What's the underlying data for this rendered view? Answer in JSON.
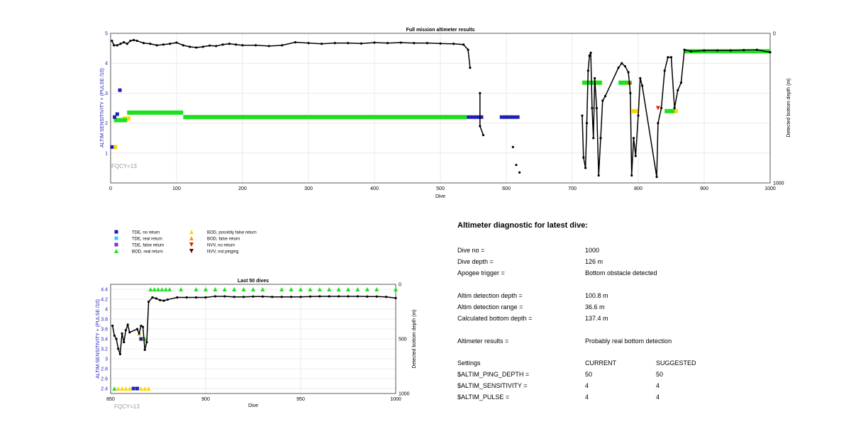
{
  "chart_data": [
    {
      "type": "scatter",
      "title": "Full mission altimeter results",
      "xlabel": "Dive",
      "ylabel": "ALTIM SENSITIVITY + (PULSE /10)",
      "y2label": "Detected bottom depth (m)",
      "xlim": [
        0,
        1000
      ],
      "ylim": [
        0,
        5
      ],
      "y2lim": [
        1000,
        0
      ],
      "xticks": [
        "0",
        "100",
        "200",
        "300",
        "400",
        "500",
        "600",
        "700",
        "800",
        "900",
        "1000"
      ],
      "yticks": [
        "1",
        "2",
        "3",
        "4",
        "5"
      ],
      "y2ticks": [
        "0",
        "1000"
      ],
      "grid": true,
      "annotation": "FQCY=13",
      "bod_real_segments": [
        {
          "x": [
            5,
            25
          ],
          "y": 2.1
        },
        {
          "x": [
            25,
            110
          ],
          "y": 2.35
        },
        {
          "x": [
            110,
            540
          ],
          "y": 2.2
        },
        {
          "x": [
            715,
            745
          ],
          "y": 3.35
        },
        {
          "x": [
            770,
            790
          ],
          "y": 3.35
        },
        {
          "x": [
            840,
            855
          ],
          "y": 2.4
        },
        {
          "x": [
            870,
            1000
          ],
          "y": 4.4
        }
      ],
      "bod_possibly_false_segments": [
        {
          "x": [
            5,
            10
          ],
          "y": 1.2
        },
        {
          "x": [
            18,
            30
          ],
          "y": 2.15
        },
        {
          "x": [
            735,
            745
          ],
          "y": 3.35
        },
        {
          "x": [
            790,
            800
          ],
          "y": 2.4
        },
        {
          "x": [
            845,
            860
          ],
          "y": 2.4
        }
      ],
      "tde_no_return_segments": [
        {
          "x": [
            540,
            565
          ],
          "y": 2.2
        },
        {
          "x": [
            590,
            620
          ],
          "y": 2.2
        }
      ],
      "tde_no_return_points": [
        {
          "x": 2,
          "y": 1.2
        },
        {
          "x": 6,
          "y": 2.2
        },
        {
          "x": 10,
          "y": 2.3
        },
        {
          "x": 14,
          "y": 3.1
        }
      ],
      "nvv_no_return_points": [
        {
          "x": 787,
          "y": 3.3
        },
        {
          "x": 830,
          "y": 2.5
        }
      ],
      "depth_early": [
        {
          "x": 2,
          "y": 50
        },
        {
          "x": 5,
          "y": 80
        },
        {
          "x": 10,
          "y": 80
        },
        {
          "x": 15,
          "y": 70
        },
        {
          "x": 20,
          "y": 60
        },
        {
          "x": 25,
          "y": 70
        },
        {
          "x": 30,
          "y": 50
        },
        {
          "x": 35,
          "y": 45
        },
        {
          "x": 40,
          "y": 50
        },
        {
          "x": 50,
          "y": 65
        },
        {
          "x": 60,
          "y": 70
        },
        {
          "x": 70,
          "y": 80
        },
        {
          "x": 80,
          "y": 75
        },
        {
          "x": 90,
          "y": 70
        },
        {
          "x": 100,
          "y": 62
        },
        {
          "x": 110,
          "y": 80
        },
        {
          "x": 120,
          "y": 90
        },
        {
          "x": 130,
          "y": 95
        },
        {
          "x": 140,
          "y": 90
        },
        {
          "x": 150,
          "y": 82
        },
        {
          "x": 160,
          "y": 85
        },
        {
          "x": 170,
          "y": 75
        },
        {
          "x": 180,
          "y": 70
        },
        {
          "x": 190,
          "y": 75
        },
        {
          "x": 200,
          "y": 80
        },
        {
          "x": 220,
          "y": 80
        },
        {
          "x": 240,
          "y": 85
        },
        {
          "x": 260,
          "y": 80
        },
        {
          "x": 280,
          "y": 60
        },
        {
          "x": 300,
          "y": 65
        },
        {
          "x": 320,
          "y": 70
        },
        {
          "x": 340,
          "y": 65
        },
        {
          "x": 360,
          "y": 65
        },
        {
          "x": 380,
          "y": 68
        },
        {
          "x": 400,
          "y": 62
        },
        {
          "x": 420,
          "y": 65
        },
        {
          "x": 440,
          "y": 62
        },
        {
          "x": 460,
          "y": 65
        },
        {
          "x": 480,
          "y": 65
        },
        {
          "x": 500,
          "y": 68
        },
        {
          "x": 520,
          "y": 70
        },
        {
          "x": 535,
          "y": 75
        },
        {
          "x": 542,
          "y": 110
        },
        {
          "x": 545,
          "y": 230
        }
      ],
      "depth_mid": [
        {
          "x": 560,
          "y": 400
        },
        {
          "x": 560,
          "y": 620
        },
        {
          "x": 565,
          "y": 680
        }
      ],
      "depth_isolated": [
        {
          "x": 610,
          "y": 760
        },
        {
          "x": 615,
          "y": 880
        },
        {
          "x": 620,
          "y": 930
        }
      ],
      "depth_late": [
        {
          "x": 715,
          "y": 550
        },
        {
          "x": 717,
          "y": 830
        },
        {
          "x": 720,
          "y": 900
        },
        {
          "x": 722,
          "y": 600
        },
        {
          "x": 724,
          "y": 250
        },
        {
          "x": 726,
          "y": 150
        },
        {
          "x": 728,
          "y": 130
        },
        {
          "x": 730,
          "y": 500
        },
        {
          "x": 732,
          "y": 700
        },
        {
          "x": 734,
          "y": 300
        },
        {
          "x": 737,
          "y": 500
        },
        {
          "x": 740,
          "y": 950
        },
        {
          "x": 743,
          "y": 700
        },
        {
          "x": 746,
          "y": 450
        },
        {
          "x": 750,
          "y": 420
        },
        {
          "x": 770,
          "y": 230
        },
        {
          "x": 775,
          "y": 200
        },
        {
          "x": 780,
          "y": 220
        },
        {
          "x": 785,
          "y": 260
        },
        {
          "x": 788,
          "y": 400
        },
        {
          "x": 790,
          "y": 950
        },
        {
          "x": 793,
          "y": 700
        },
        {
          "x": 796,
          "y": 820
        },
        {
          "x": 800,
          "y": 550
        },
        {
          "x": 803,
          "y": 300
        },
        {
          "x": 806,
          "y": 350
        },
        {
          "x": 828,
          "y": 960
        },
        {
          "x": 830,
          "y": 600
        },
        {
          "x": 835,
          "y": 500
        },
        {
          "x": 840,
          "y": 250
        },
        {
          "x": 845,
          "y": 160
        },
        {
          "x": 850,
          "y": 160
        },
        {
          "x": 855,
          "y": 500
        },
        {
          "x": 860,
          "y": 380
        },
        {
          "x": 865,
          "y": 330
        },
        {
          "x": 870,
          "y": 110
        },
        {
          "x": 880,
          "y": 120
        },
        {
          "x": 900,
          "y": 115
        },
        {
          "x": 920,
          "y": 115
        },
        {
          "x": 940,
          "y": 115
        },
        {
          "x": 960,
          "y": 112
        },
        {
          "x": 980,
          "y": 110
        },
        {
          "x": 1000,
          "y": 126
        }
      ]
    },
    {
      "type": "scatter",
      "title": "Last 50 dives",
      "xlabel": "Dive",
      "ylabel": "ALTIM SENSITIVITY + (PULSE /10)",
      "y2label": "Detected bottom depth (m)",
      "xlim": [
        850,
        1000
      ],
      "ylim": [
        2.3,
        4.5
      ],
      "y2lim": [
        1000,
        0
      ],
      "xticks": [
        "850",
        "900",
        "950",
        "1000"
      ],
      "yticks": [
        "2.4",
        "2.6",
        "2.8",
        "3",
        "3.2",
        "3.4",
        "3.6",
        "3.8",
        "4",
        "4.2",
        "4.4"
      ],
      "y2ticks": [
        "0",
        "500",
        "1000"
      ],
      "grid": true,
      "annotation": "FQCY=13",
      "bod_real_points": [
        {
          "x": 852,
          "y": 2.4
        },
        {
          "x": 868,
          "y": 3.4
        },
        {
          "x": 871,
          "y": 4.4
        },
        {
          "x": 873,
          "y": 4.4
        },
        {
          "x": 875,
          "y": 4.4
        },
        {
          "x": 877,
          "y": 4.4
        },
        {
          "x": 879,
          "y": 4.4
        },
        {
          "x": 881,
          "y": 4.4
        },
        {
          "x": 887,
          "y": 4.4
        },
        {
          "x": 895,
          "y": 4.4
        },
        {
          "x": 900,
          "y": 4.4
        },
        {
          "x": 905,
          "y": 4.4
        },
        {
          "x": 910,
          "y": 4.4
        },
        {
          "x": 915,
          "y": 4.4
        },
        {
          "x": 920,
          "y": 4.4
        },
        {
          "x": 925,
          "y": 4.4
        },
        {
          "x": 930,
          "y": 4.4
        },
        {
          "x": 940,
          "y": 4.4
        },
        {
          "x": 945,
          "y": 4.4
        },
        {
          "x": 950,
          "y": 4.4
        },
        {
          "x": 955,
          "y": 4.4
        },
        {
          "x": 960,
          "y": 4.4
        },
        {
          "x": 965,
          "y": 4.4
        },
        {
          "x": 970,
          "y": 4.4
        },
        {
          "x": 975,
          "y": 4.4
        },
        {
          "x": 980,
          "y": 4.4
        },
        {
          "x": 985,
          "y": 4.4
        },
        {
          "x": 990,
          "y": 4.4
        },
        {
          "x": 1000,
          "y": 4.4
        }
      ],
      "bod_possibly_false_points": [
        {
          "x": 854,
          "y": 2.4
        },
        {
          "x": 856,
          "y": 2.4
        },
        {
          "x": 858,
          "y": 2.4
        },
        {
          "x": 860,
          "y": 2.4
        },
        {
          "x": 866,
          "y": 2.4
        },
        {
          "x": 868,
          "y": 2.4
        },
        {
          "x": 870,
          "y": 2.4
        },
        {
          "x": 865,
          "y": 3.5
        },
        {
          "x": 867,
          "y": 3.4
        }
      ],
      "tde_no_return_points": [
        {
          "x": 862,
          "y": 2.4
        },
        {
          "x": 864,
          "y": 2.4
        },
        {
          "x": 866,
          "y": 3.4
        }
      ],
      "depth": [
        {
          "x": 851,
          "y": 380
        },
        {
          "x": 852,
          "y": 470
        },
        {
          "x": 853,
          "y": 500
        },
        {
          "x": 854,
          "y": 590
        },
        {
          "x": 855,
          "y": 640
        },
        {
          "x": 856,
          "y": 450
        },
        {
          "x": 857,
          "y": 530
        },
        {
          "x": 858,
          "y": 420
        },
        {
          "x": 859,
          "y": 370
        },
        {
          "x": 860,
          "y": 440
        },
        {
          "x": 864,
          "y": 410
        },
        {
          "x": 865,
          "y": 450
        },
        {
          "x": 866,
          "y": 380
        },
        {
          "x": 867,
          "y": 390
        },
        {
          "x": 868,
          "y": 600
        },
        {
          "x": 869,
          "y": 530
        },
        {
          "x": 870,
          "y": 160
        },
        {
          "x": 872,
          "y": 120
        },
        {
          "x": 874,
          "y": 130
        },
        {
          "x": 876,
          "y": 145
        },
        {
          "x": 878,
          "y": 150
        },
        {
          "x": 880,
          "y": 140
        },
        {
          "x": 885,
          "y": 120
        },
        {
          "x": 890,
          "y": 120
        },
        {
          "x": 895,
          "y": 120
        },
        {
          "x": 900,
          "y": 120
        },
        {
          "x": 905,
          "y": 110
        },
        {
          "x": 910,
          "y": 110
        },
        {
          "x": 915,
          "y": 115
        },
        {
          "x": 920,
          "y": 115
        },
        {
          "x": 925,
          "y": 112
        },
        {
          "x": 930,
          "y": 112
        },
        {
          "x": 935,
          "y": 115
        },
        {
          "x": 940,
          "y": 115
        },
        {
          "x": 945,
          "y": 115
        },
        {
          "x": 950,
          "y": 115
        },
        {
          "x": 955,
          "y": 112
        },
        {
          "x": 960,
          "y": 110
        },
        {
          "x": 965,
          "y": 110
        },
        {
          "x": 970,
          "y": 110
        },
        {
          "x": 975,
          "y": 110
        },
        {
          "x": 980,
          "y": 110
        },
        {
          "x": 985,
          "y": 112
        },
        {
          "x": 990,
          "y": 112
        },
        {
          "x": 995,
          "y": 115
        },
        {
          "x": 1000,
          "y": 126
        }
      ]
    }
  ],
  "legend": [
    {
      "label": "TDE, no return",
      "marker": "square",
      "color": "#1f1fb4"
    },
    {
      "label": "TDE, real return",
      "marker": "square",
      "color": "#33ccff"
    },
    {
      "label": "TDE, false return",
      "marker": "square",
      "color": "#7733cc"
    },
    {
      "label": "BOD, real return",
      "marker": "triangle-up",
      "color": "#1ee01e"
    },
    {
      "label": "BOD, possibly false return",
      "marker": "triangle-up",
      "color": "#ffd700"
    },
    {
      "label": "BOD, false return",
      "marker": "triangle-up",
      "color": "#ff9900"
    },
    {
      "label": "NVV, no return",
      "marker": "triangle-down",
      "color": "#dd2200"
    },
    {
      "label": "NVV, not pinging",
      "marker": "triangle-down",
      "color": "#660000"
    }
  ],
  "colors": {
    "axis_label_blue": "#2222bb",
    "depth_line": "#000000",
    "grid": "#dddddd",
    "annotation_gray": "#999999"
  },
  "diagnostic": {
    "title": "Altimeter diagnostic for latest dive:",
    "dive_no_label": "Dive no =",
    "dive_no_value": "1000",
    "dive_depth_label": "Dive depth =",
    "dive_depth_value": "126 m",
    "apogee_label": "Apogee trigger =",
    "apogee_value": "Bottom obstacle detected",
    "altim_depth_label": "Altim detection depth =",
    "altim_depth_value": "100.8 m",
    "altim_range_label": "Altim detection range =",
    "altim_range_value": "36.6 m",
    "calc_depth_label": "Calculated bottom depth =",
    "calc_depth_value": "137.4 m",
    "results_label": "Altimeter results =",
    "results_value": "Probably real bottom detection",
    "settings_label": "Settings",
    "current_label": "CURRENT",
    "suggested_label": "SUGGESTED",
    "ping_depth_label": "$ALTIM_PING_DEPTH =",
    "ping_depth_current": "50",
    "ping_depth_suggested": "50",
    "sensitivity_label": "$ALTIM_SENSITIVITY =",
    "sensitivity_current": "4",
    "sensitivity_suggested": "4",
    "pulse_label": "$ALTIM_PULSE =",
    "pulse_current": "4",
    "pulse_suggested": "4"
  }
}
